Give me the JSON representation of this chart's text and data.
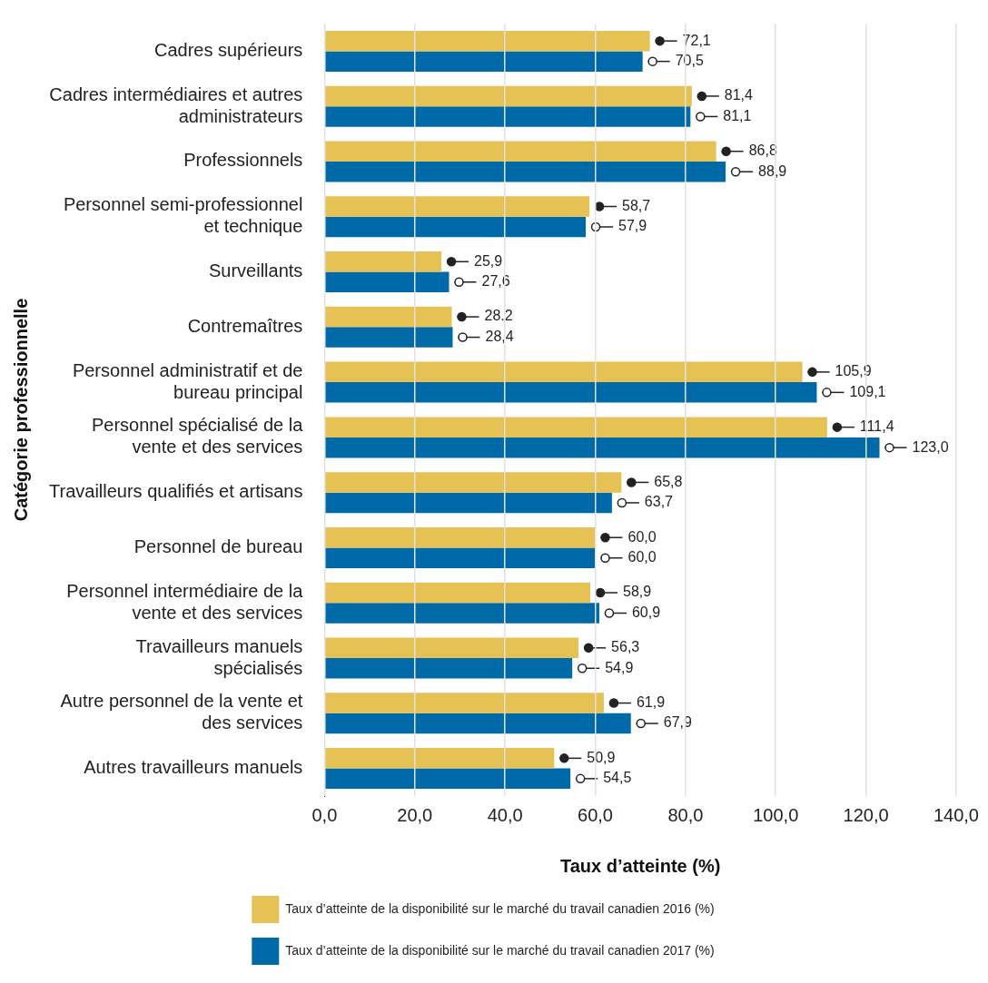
{
  "chart_data": {
    "type": "bar",
    "orientation": "horizontal",
    "xlabel": "Taux d’atteinte (%)",
    "ylabel": "Catégorie professionnelle",
    "categories": [
      "Cadres supérieurs",
      "Cadres intermédiaires et autres administrateurs",
      "Professionnels",
      "Personnel semi-professionnel et technique",
      "Surveillants",
      "Contremaîtres",
      "Personnel administratif et de bureau principal",
      "Personnel spécialisé de la vente et des services",
      "Travailleurs qualifiés et artisans",
      "Personnel de bureau",
      "Personnel intermédiaire de la vente et des services",
      "Travailleurs manuels spécialisés",
      "Autre personnel de la vente et des services",
      "Autres travailleurs manuels"
    ],
    "series": [
      {
        "name": "Taux d’atteinte de la disponibilité sur le marché du travail canadien 2016 (%)",
        "color": "#e6c153",
        "values": [
          72.1,
          81.4,
          86.8,
          58.7,
          25.9,
          28.2,
          105.9,
          111.4,
          65.8,
          60.0,
          58.9,
          56.3,
          61.9,
          50.9
        ],
        "value_labels": [
          "72,1",
          "81,4",
          "86,8",
          "58,7",
          "25,9",
          "28.2",
          "105,9",
          "111,4",
          "65,8",
          "60,0",
          "58,9",
          "56,3",
          "61,9",
          "50,9"
        ]
      },
      {
        "name": "Taux d’atteinte de la disponibilité sur le marché du travail canadien 2017 (%)",
        "color": "#0069a8",
        "values": [
          70.5,
          81.1,
          88.9,
          57.9,
          27.6,
          28.4,
          109.1,
          123.0,
          63.7,
          60.0,
          60.9,
          54.9,
          67.9,
          54.5
        ],
        "value_labels": [
          "70,5",
          "81,1",
          "88,9",
          "57,9",
          "27,6",
          "28,4",
          "109,1",
          "123,0",
          "63,7",
          "60,0",
          "60,9",
          "54,9",
          "67,9",
          "54,5"
        ]
      }
    ],
    "xlim": [
      0,
      140
    ],
    "xticks": [
      {
        "value": 0,
        "label": "0,0"
      },
      {
        "value": 20,
        "label": "20,0"
      },
      {
        "value": 40,
        "label": "40,0"
      },
      {
        "value": 60,
        "label": "60,0"
      },
      {
        "value": 80,
        "label": "80,0"
      },
      {
        "value": 100,
        "label": "100,0"
      },
      {
        "value": 120,
        "label": "120,0"
      },
      {
        "value": 140,
        "label": "140,0"
      }
    ],
    "grid": "x",
    "legend": "bottom"
  }
}
